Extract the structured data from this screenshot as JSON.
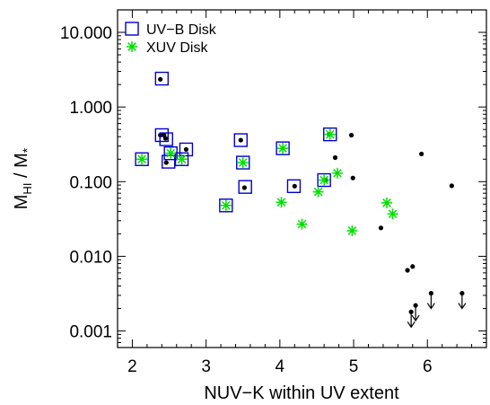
{
  "chart_data": {
    "type": "scatter",
    "xlabel": "NUV−K within UV extent",
    "ylabel": {
      "base": "M",
      "sub": "HI",
      "sep": " / M",
      "star": "*"
    },
    "xlim": [
      1.8,
      6.8
    ],
    "ylim": [
      0.0006,
      20
    ],
    "yscale": "log",
    "xticks": [
      {
        "v": 2,
        "label": "2"
      },
      {
        "v": 3,
        "label": "3"
      },
      {
        "v": 4,
        "label": "4"
      },
      {
        "v": 5,
        "label": "5"
      },
      {
        "v": 6,
        "label": "6"
      }
    ],
    "yticks": [
      {
        "v": 0.001,
        "label": "0.001"
      },
      {
        "v": 0.01,
        "label": "0.010"
      },
      {
        "v": 0.1,
        "label": "0.100"
      },
      {
        "v": 1,
        "label": "1.000"
      },
      {
        "v": 10,
        "label": "10.000"
      }
    ],
    "legend": {
      "position": "top-left",
      "entries": [
        {
          "label": "UV−B Disk",
          "marker": "open-square",
          "color": "#0000cc"
        },
        {
          "label": "XUV Disk",
          "marker": "asterisk",
          "color": "#00e000"
        }
      ]
    },
    "series": [
      {
        "marker": "dot",
        "color": "#000000",
        "points": [
          [
            2.38,
            2.35
          ],
          [
            2.38,
            0.42
          ],
          [
            2.45,
            0.38
          ],
          [
            2.43,
            0.42
          ],
          [
            2.46,
            0.18
          ],
          [
            2.73,
            0.27
          ],
          [
            3.47,
            0.36
          ],
          [
            3.52,
            0.083
          ],
          [
            4.2,
            0.087
          ],
          [
            4.62,
            0.105
          ],
          [
            4.67,
            0.43
          ],
          [
            4.75,
            0.21
          ],
          [
            4.97,
            0.42
          ],
          [
            4.99,
            0.112
          ],
          [
            5.37,
            0.024
          ],
          [
            5.92,
            0.235
          ],
          [
            6.33,
            0.088
          ],
          [
            5.73,
            0.0065
          ],
          [
            5.8,
            0.0073
          ]
        ]
      },
      {
        "marker": "open-square",
        "color": "#0000cc",
        "points": [
          [
            2.13,
            0.2
          ],
          [
            2.4,
            2.4
          ],
          [
            2.4,
            0.42
          ],
          [
            2.46,
            0.37
          ],
          [
            2.49,
            0.185
          ],
          [
            2.52,
            0.24
          ],
          [
            2.67,
            0.2
          ],
          [
            2.73,
            0.27
          ],
          [
            3.27,
            0.048
          ],
          [
            3.47,
            0.36
          ],
          [
            3.5,
            0.18
          ],
          [
            3.53,
            0.085
          ],
          [
            4.04,
            0.28
          ],
          [
            4.19,
            0.087
          ],
          [
            4.6,
            0.105
          ],
          [
            4.68,
            0.43
          ]
        ]
      },
      {
        "marker": "asterisk",
        "color": "#00e000",
        "points": [
          [
            2.13,
            0.2
          ],
          [
            2.52,
            0.24
          ],
          [
            2.67,
            0.2
          ],
          [
            3.27,
            0.048
          ],
          [
            3.5,
            0.18
          ],
          [
            4.02,
            0.053
          ],
          [
            4.04,
            0.28
          ],
          [
            4.3,
            0.027
          ],
          [
            4.52,
            0.073
          ],
          [
            4.6,
            0.105
          ],
          [
            4.68,
            0.43
          ],
          [
            4.78,
            0.13
          ],
          [
            4.98,
            0.022
          ],
          [
            5.45,
            0.052
          ],
          [
            5.53,
            0.037
          ]
        ]
      },
      {
        "marker": "upper-limit",
        "color": "#000000",
        "points": [
          [
            5.78,
            0.0018
          ],
          [
            5.84,
            0.0022
          ],
          [
            6.05,
            0.0032
          ],
          [
            6.47,
            0.0032
          ]
        ]
      }
    ]
  }
}
